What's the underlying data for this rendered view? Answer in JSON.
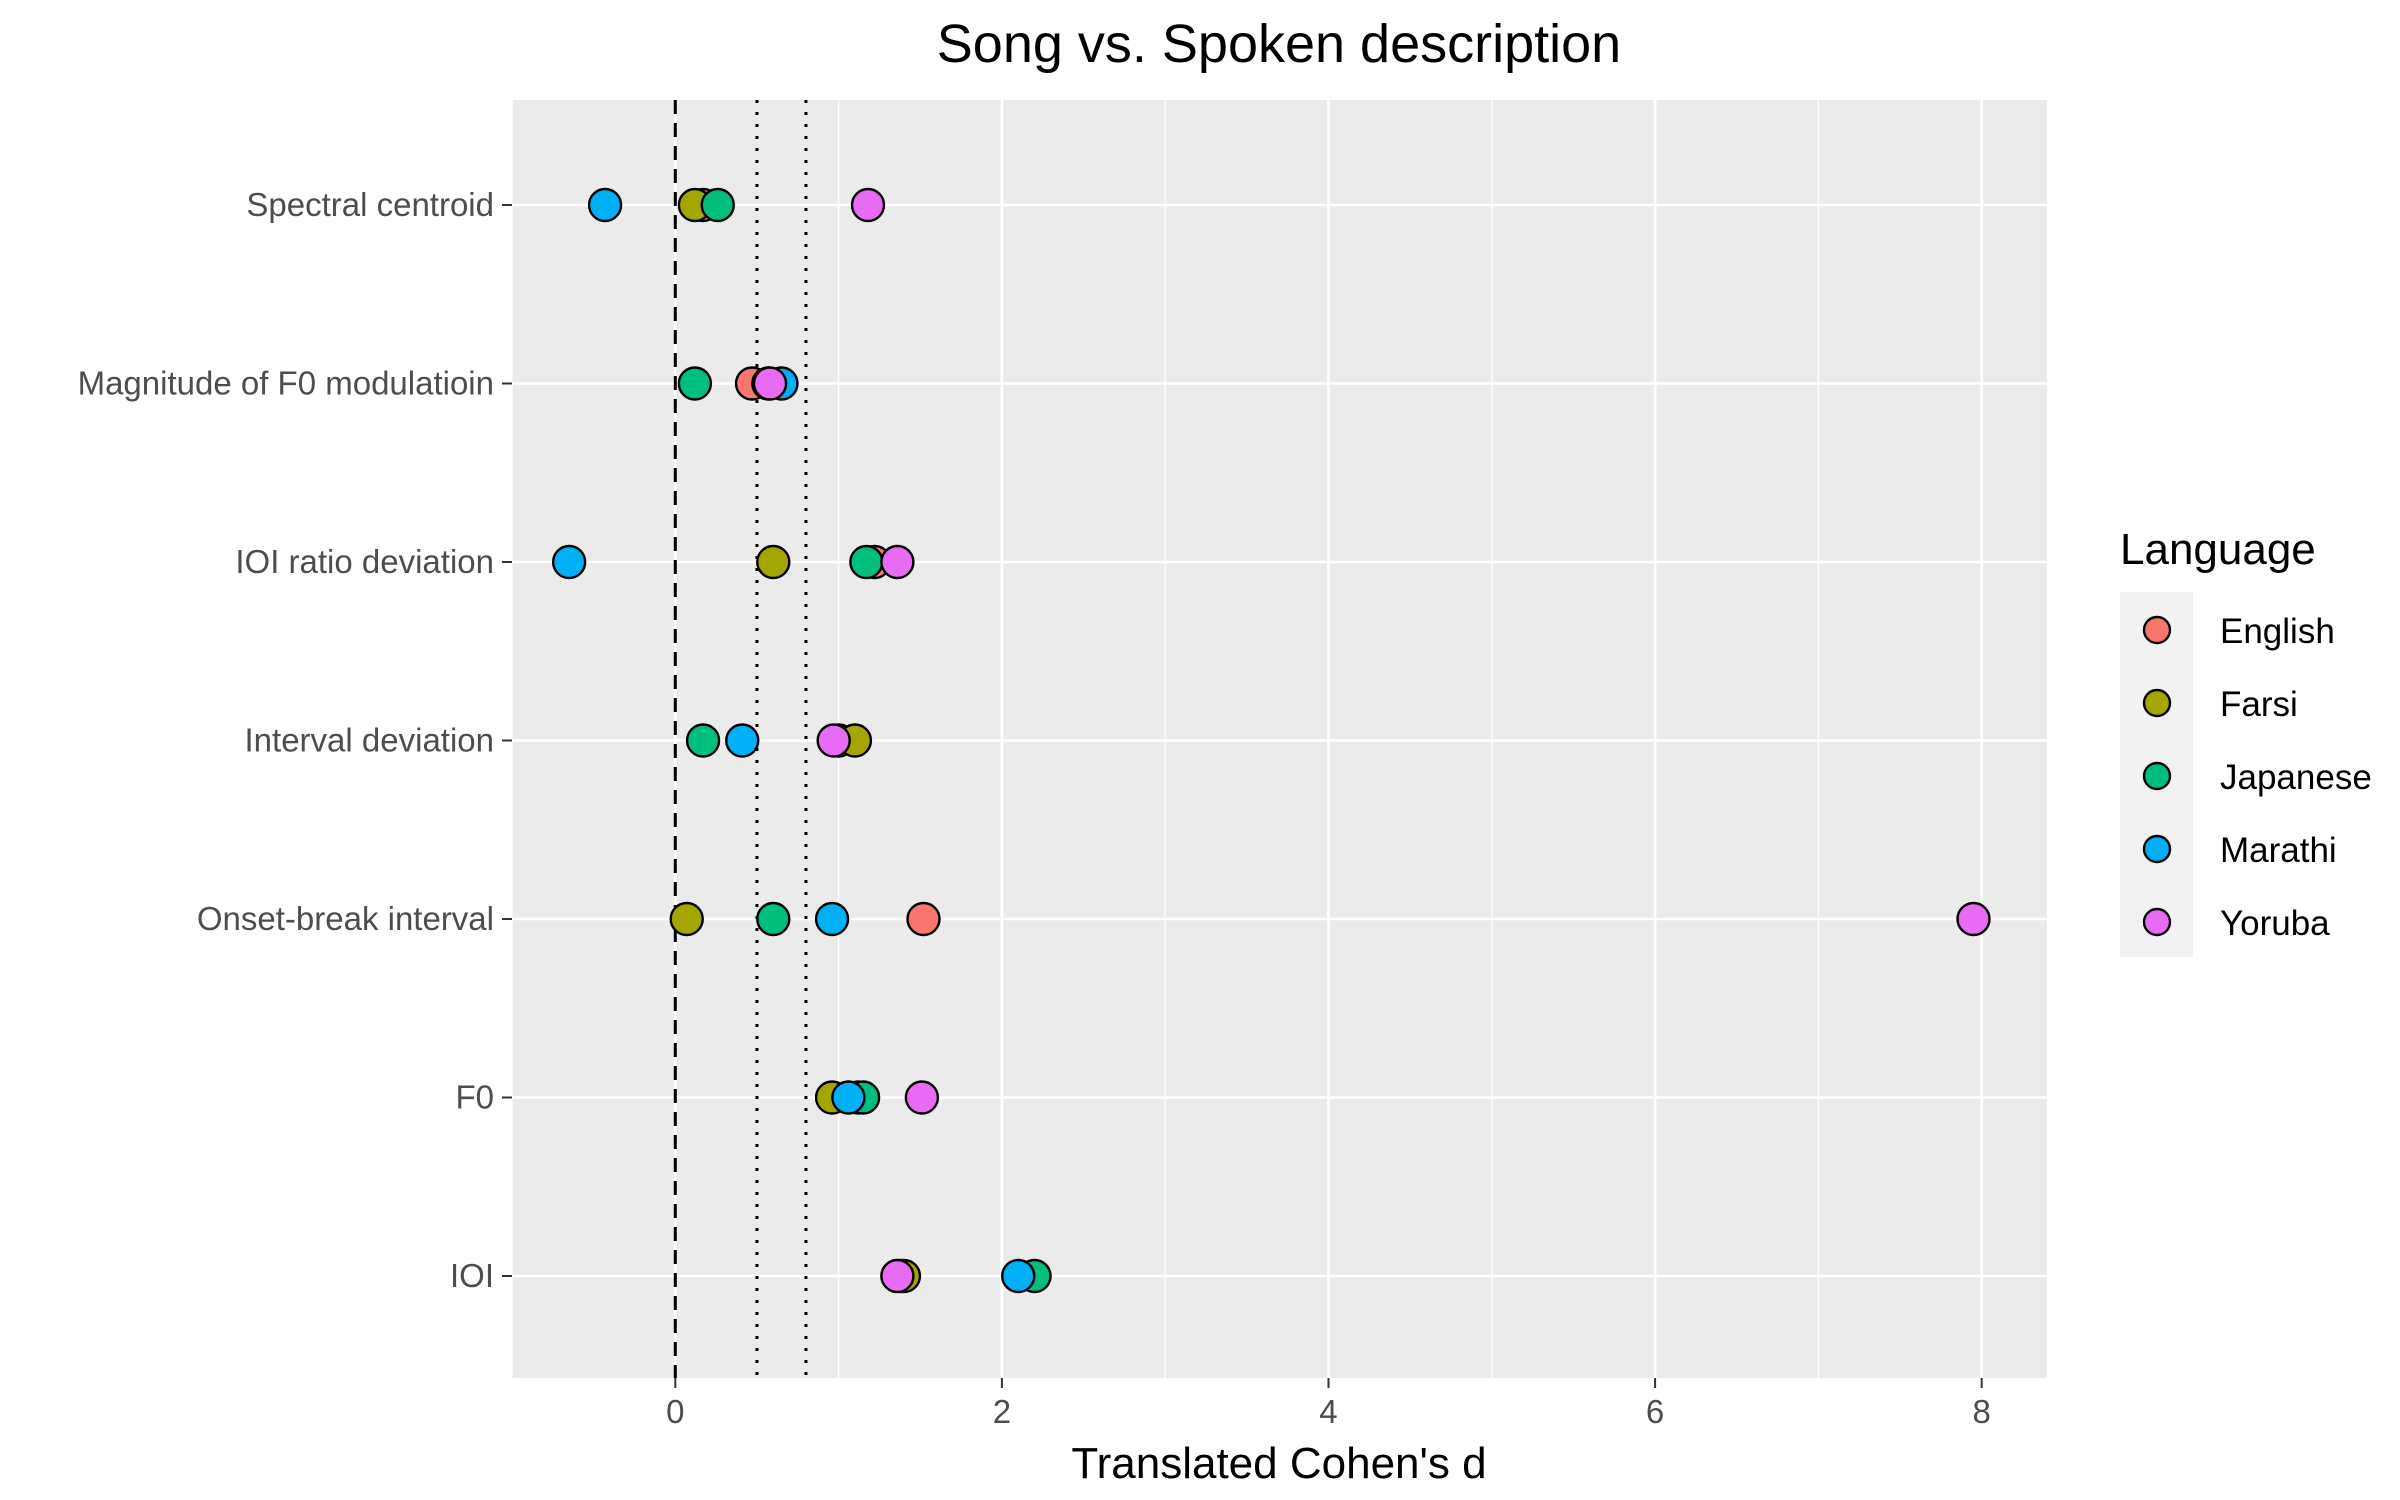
{
  "chart_data": {
    "type": "scatter",
    "title": "Song vs. Spoken description",
    "xlabel": "Translated Cohen's d",
    "ylabel": "",
    "xlim": [
      -1,
      8.4
    ],
    "x_ticks": [
      0,
      2,
      4,
      6,
      8
    ],
    "x_tick_labels": [
      "0",
      "2",
      "4",
      "6",
      "8"
    ],
    "categories": [
      "Spectral centroid",
      "Magnitude of F0 modulatioin",
      "IOI ratio deviation",
      "Interval deviation",
      "Onset-break interval",
      "F0",
      "IOI"
    ],
    "reference_lines": [
      {
        "x": 0,
        "style": "dashed"
      },
      {
        "x": 0.5,
        "style": "dotted"
      },
      {
        "x": 0.8,
        "style": "dotted"
      }
    ],
    "legend": {
      "title": "Language",
      "position": "right"
    },
    "grid": true,
    "series": [
      {
        "name": "English",
        "color": "#F8766D",
        "values": [
          0.17,
          0.47,
          1.22,
          1.0,
          1.52,
          1.12,
          1.38
        ]
      },
      {
        "name": "Farsi",
        "color": "#A3A500",
        "values": [
          0.12,
          0.57,
          0.6,
          1.1,
          0.07,
          0.96,
          1.4
        ]
      },
      {
        "name": "Japanese",
        "color": "#00BF7D",
        "values": [
          0.26,
          0.12,
          1.17,
          0.17,
          0.6,
          1.15,
          2.2
        ]
      },
      {
        "name": "Marathi",
        "color": "#00B0F6",
        "values": [
          -0.43,
          0.65,
          -0.65,
          0.41,
          0.96,
          1.06,
          2.1
        ]
      },
      {
        "name": "Yoruba",
        "color": "#E76BF3",
        "values": [
          1.18,
          0.58,
          1.36,
          0.97,
          7.95,
          1.51,
          1.36
        ]
      }
    ]
  }
}
